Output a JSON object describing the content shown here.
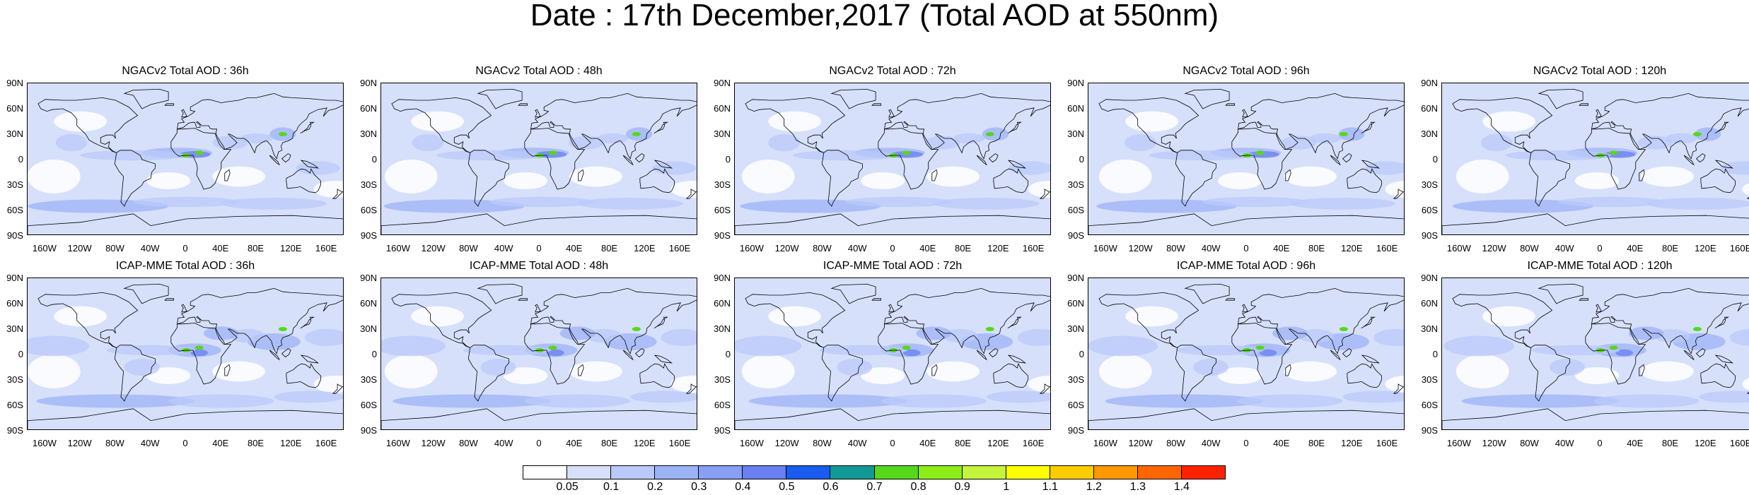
{
  "title": "Date : 17th December,2017 (Total AOD at 550nm)",
  "panels": [
    {
      "title": "NGACv2 Total AOD : 36h",
      "model": "NGACv2",
      "lead": "36h"
    },
    {
      "title": "NGACv2 Total AOD : 48h",
      "model": "NGACv2",
      "lead": "48h"
    },
    {
      "title": "NGACv2 Total AOD : 72h",
      "model": "NGACv2",
      "lead": "72h"
    },
    {
      "title": "NGACv2 Total AOD : 96h",
      "model": "NGACv2",
      "lead": "96h"
    },
    {
      "title": "NGACv2 Total AOD : 120h",
      "model": "NGACv2",
      "lead": "120h"
    },
    {
      "title": "ICAP-MME Total AOD : 36h",
      "model": "ICAP-MME",
      "lead": "36h"
    },
    {
      "title": "ICAP-MME Total AOD : 48h",
      "model": "ICAP-MME",
      "lead": "48h"
    },
    {
      "title": "ICAP-MME Total AOD : 72h",
      "model": "ICAP-MME",
      "lead": "72h"
    },
    {
      "title": "ICAP-MME Total AOD : 96h",
      "model": "ICAP-MME",
      "lead": "96h"
    },
    {
      "title": "ICAP-MME Total AOD : 120h",
      "model": "ICAP-MME",
      "lead": "120h"
    }
  ],
  "lat_labels": [
    "90N",
    "60N",
    "30N",
    "0",
    "30S",
    "60S",
    "90S"
  ],
  "lon_labels": [
    "160W",
    "120W",
    "80W",
    "40W",
    "0",
    "40E",
    "80E",
    "120E",
    "160E"
  ],
  "colorbar": {
    "labels": [
      "0.05",
      "0.1",
      "0.2",
      "0.3",
      "0.4",
      "0.5",
      "0.6",
      "0.7",
      "0.8",
      "0.9",
      "1",
      "1.1",
      "1.2",
      "1.3",
      "1.4"
    ],
    "colors": [
      "#ffffff",
      "#d6e0fb",
      "#b9cafa",
      "#9db3f7",
      "#889ff4",
      "#6a7ff0",
      "#1a5cf0",
      "#119996",
      "#56d81a",
      "#8ced17",
      "#c4f43b",
      "#ffff00",
      "#ffcc00",
      "#ff9900",
      "#ff6600",
      "#ff2200"
    ]
  },
  "colors": {
    "base": "#d6e0fb",
    "medium": "#b9cafa",
    "high": "#9db3f7",
    "dust": "#6a7ff0",
    "coast": "#000000"
  }
}
